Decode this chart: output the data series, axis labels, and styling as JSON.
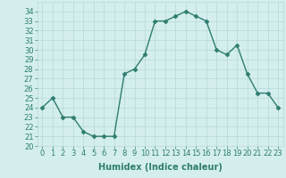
{
  "x": [
    0,
    1,
    2,
    3,
    4,
    5,
    6,
    7,
    8,
    9,
    10,
    11,
    12,
    13,
    14,
    15,
    16,
    17,
    18,
    19,
    20,
    21,
    22,
    23
  ],
  "y": [
    24,
    25,
    23,
    23,
    21.5,
    21,
    21,
    21,
    27.5,
    28,
    29.5,
    33,
    33,
    33.5,
    34,
    33.5,
    33,
    30,
    29.5,
    30.5,
    27.5,
    25.5,
    25.5,
    24
  ],
  "xlabel": "Humidex (Indice chaleur)",
  "ylim": [
    20,
    35
  ],
  "xlim": [
    -0.5,
    23.5
  ],
  "line_color": "#2e7d6e",
  "marker": "D",
  "marker_size": 2.5,
  "bg_color": "#d4eeee",
  "grid_color": "#b8d8d8",
  "tick_label_fontsize": 6,
  "xlabel_fontsize": 7,
  "yticks": [
    20,
    21,
    22,
    23,
    24,
    25,
    26,
    27,
    28,
    29,
    30,
    31,
    32,
    33,
    34
  ],
  "xticks": [
    0,
    1,
    2,
    3,
    4,
    5,
    6,
    7,
    8,
    9,
    10,
    11,
    12,
    13,
    14,
    15,
    16,
    17,
    18,
    19,
    20,
    21,
    22,
    23
  ]
}
